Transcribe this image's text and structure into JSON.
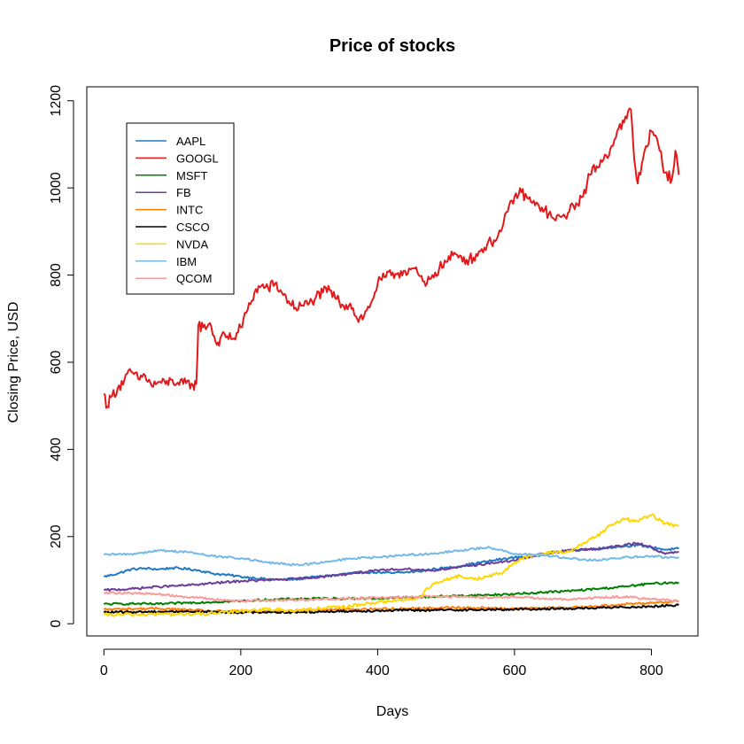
{
  "chart_data": {
    "type": "line",
    "title": "Price of stocks",
    "xlabel": "Days",
    "ylabel": "Closing Price, USD",
    "xlim": [
      -25,
      868
    ],
    "ylim": [
      -28,
      1232
    ],
    "xticks": [
      0,
      200,
      400,
      600,
      800
    ],
    "yticks": [
      0,
      200,
      400,
      600,
      800,
      1000,
      1200
    ],
    "grid": false,
    "legend_position": "top-left",
    "series": [
      {
        "name": "AAPL",
        "color": "#1f78c8",
        "points": [
          [
            0,
            108
          ],
          [
            20,
            115
          ],
          [
            40,
            125
          ],
          [
            60,
            127
          ],
          [
            80,
            125
          ],
          [
            100,
            128
          ],
          [
            120,
            126
          ],
          [
            140,
            122
          ],
          [
            160,
            115
          ],
          [
            180,
            112
          ],
          [
            200,
            108
          ],
          [
            220,
            105
          ],
          [
            240,
            102
          ],
          [
            260,
            101
          ],
          [
            280,
            102
          ],
          [
            300,
            106
          ],
          [
            320,
            109
          ],
          [
            340,
            112
          ],
          [
            360,
            116
          ],
          [
            380,
            118
          ],
          [
            400,
            118
          ],
          [
            420,
            116
          ],
          [
            440,
            118
          ],
          [
            460,
            120
          ],
          [
            480,
            125
          ],
          [
            500,
            128
          ],
          [
            520,
            132
          ],
          [
            540,
            138
          ],
          [
            560,
            143
          ],
          [
            580,
            148
          ],
          [
            600,
            152
          ],
          [
            620,
            155
          ],
          [
            640,
            158
          ],
          [
            660,
            165
          ],
          [
            680,
            168
          ],
          [
            700,
            170
          ],
          [
            720,
            172
          ],
          [
            740,
            175
          ],
          [
            760,
            178
          ],
          [
            780,
            180
          ],
          [
            800,
            176
          ],
          [
            820,
            170
          ],
          [
            840,
            172
          ]
        ]
      },
      {
        "name": "GOOGL",
        "color": "#e31a1c",
        "points": [
          [
            0,
            528
          ],
          [
            5,
            498
          ],
          [
            10,
            520
          ],
          [
            20,
            540
          ],
          [
            30,
            560
          ],
          [
            40,
            578
          ],
          [
            50,
            562
          ],
          [
            60,
            570
          ],
          [
            70,
            545
          ],
          [
            80,
            555
          ],
          [
            90,
            550
          ],
          [
            100,
            560
          ],
          [
            110,
            548
          ],
          [
            120,
            552
          ],
          [
            130,
            548
          ],
          [
            135,
            550
          ],
          [
            138,
            685
          ],
          [
            145,
            680
          ],
          [
            155,
            690
          ],
          [
            165,
            640
          ],
          [
            170,
            655
          ],
          [
            180,
            660
          ],
          [
            190,
            655
          ],
          [
            200,
            680
          ],
          [
            210,
            720
          ],
          [
            220,
            760
          ],
          [
            230,
            775
          ],
          [
            240,
            770
          ],
          [
            250,
            780
          ],
          [
            260,
            760
          ],
          [
            270,
            740
          ],
          [
            280,
            725
          ],
          [
            290,
            730
          ],
          [
            300,
            735
          ],
          [
            310,
            750
          ],
          [
            320,
            760
          ],
          [
            330,
            765
          ],
          [
            340,
            745
          ],
          [
            350,
            730
          ],
          [
            360,
            735
          ],
          [
            370,
            700
          ],
          [
            380,
            705
          ],
          [
            390,
            735
          ],
          [
            400,
            780
          ],
          [
            410,
            795
          ],
          [
            420,
            800
          ],
          [
            430,
            805
          ],
          [
            440,
            810
          ],
          [
            450,
            815
          ],
          [
            460,
            800
          ],
          [
            470,
            775
          ],
          [
            480,
            800
          ],
          [
            490,
            815
          ],
          [
            500,
            830
          ],
          [
            510,
            845
          ],
          [
            520,
            845
          ],
          [
            530,
            835
          ],
          [
            540,
            840
          ],
          [
            550,
            855
          ],
          [
            560,
            870
          ],
          [
            570,
            880
          ],
          [
            580,
            900
          ],
          [
            590,
            945
          ],
          [
            600,
            980
          ],
          [
            610,
            990
          ],
          [
            620,
            975
          ],
          [
            630,
            960
          ],
          [
            640,
            955
          ],
          [
            650,
            940
          ],
          [
            660,
            925
          ],
          [
            670,
            935
          ],
          [
            680,
            945
          ],
          [
            690,
            965
          ],
          [
            700,
            980
          ],
          [
            710,
            1030
          ],
          [
            720,
            1050
          ],
          [
            730,
            1065
          ],
          [
            740,
            1090
          ],
          [
            750,
            1130
          ],
          [
            760,
            1150
          ],
          [
            770,
            1180
          ],
          [
            775,
            1065
          ],
          [
            780,
            1010
          ],
          [
            790,
            1085
          ],
          [
            800,
            1130
          ],
          [
            810,
            1100
          ],
          [
            820,
            1035
          ],
          [
            830,
            1020
          ],
          [
            835,
            1085
          ],
          [
            840,
            1030
          ]
        ]
      },
      {
        "name": "MSFT",
        "color": "#008000",
        "points": [
          [
            0,
            45
          ],
          [
            40,
            46
          ],
          [
            80,
            45
          ],
          [
            120,
            48
          ],
          [
            160,
            50
          ],
          [
            200,
            52
          ],
          [
            240,
            55
          ],
          [
            280,
            57
          ],
          [
            320,
            58
          ],
          [
            360,
            58
          ],
          [
            400,
            58
          ],
          [
            440,
            60
          ],
          [
            480,
            62
          ],
          [
            520,
            64
          ],
          [
            560,
            66
          ],
          [
            600,
            68
          ],
          [
            640,
            72
          ],
          [
            680,
            75
          ],
          [
            720,
            80
          ],
          [
            760,
            85
          ],
          [
            800,
            92
          ],
          [
            840,
            95
          ]
        ]
      },
      {
        "name": "FB",
        "color": "#6a3d9a",
        "points": [
          [
            0,
            77
          ],
          [
            40,
            80
          ],
          [
            80,
            85
          ],
          [
            120,
            88
          ],
          [
            160,
            93
          ],
          [
            200,
            98
          ],
          [
            240,
            100
          ],
          [
            280,
            103
          ],
          [
            320,
            108
          ],
          [
            360,
            115
          ],
          [
            400,
            122
          ],
          [
            440,
            126
          ],
          [
            480,
            122
          ],
          [
            520,
            130
          ],
          [
            560,
            138
          ],
          [
            600,
            145
          ],
          [
            640,
            160
          ],
          [
            680,
            168
          ],
          [
            720,
            172
          ],
          [
            760,
            180
          ],
          [
            780,
            185
          ],
          [
            800,
            175
          ],
          [
            820,
            160
          ],
          [
            840,
            165
          ]
        ]
      },
      {
        "name": "INTC",
        "color": "#ff7f00",
        "points": [
          [
            0,
            33
          ],
          [
            40,
            34
          ],
          [
            80,
            35
          ],
          [
            120,
            32
          ],
          [
            160,
            29
          ],
          [
            200,
            28
          ],
          [
            240,
            29
          ],
          [
            280,
            30
          ],
          [
            320,
            32
          ],
          [
            360,
            33
          ],
          [
            400,
            34
          ],
          [
            440,
            35
          ],
          [
            480,
            36
          ],
          [
            520,
            37
          ],
          [
            560,
            36
          ],
          [
            600,
            35
          ],
          [
            640,
            36
          ],
          [
            680,
            37
          ],
          [
            720,
            40
          ],
          [
            760,
            45
          ],
          [
            800,
            48
          ],
          [
            840,
            52
          ]
        ]
      },
      {
        "name": "CSCO",
        "color": "#000000",
        "points": [
          [
            0,
            26
          ],
          [
            40,
            27
          ],
          [
            80,
            28
          ],
          [
            120,
            28
          ],
          [
            160,
            27
          ],
          [
            200,
            26
          ],
          [
            240,
            27
          ],
          [
            280,
            26
          ],
          [
            320,
            28
          ],
          [
            360,
            29
          ],
          [
            400,
            30
          ],
          [
            440,
            31
          ],
          [
            480,
            31
          ],
          [
            520,
            32
          ],
          [
            560,
            32
          ],
          [
            600,
            33
          ],
          [
            640,
            34
          ],
          [
            680,
            35
          ],
          [
            720,
            36
          ],
          [
            760,
            38
          ],
          [
            800,
            40
          ],
          [
            840,
            43
          ]
        ]
      },
      {
        "name": "NVDA",
        "color": "#ffd700",
        "points": [
          [
            0,
            20
          ],
          [
            40,
            21
          ],
          [
            80,
            22
          ],
          [
            120,
            22
          ],
          [
            160,
            23
          ],
          [
            200,
            30
          ],
          [
            240,
            33
          ],
          [
            280,
            30
          ],
          [
            320,
            35
          ],
          [
            360,
            40
          ],
          [
            400,
            50
          ],
          [
            440,
            55
          ],
          [
            460,
            60
          ],
          [
            480,
            90
          ],
          [
            500,
            100
          ],
          [
            520,
            110
          ],
          [
            540,
            102
          ],
          [
            560,
            108
          ],
          [
            580,
            115
          ],
          [
            600,
            140
          ],
          [
            620,
            155
          ],
          [
            640,
            160
          ],
          [
            660,
            165
          ],
          [
            680,
            165
          ],
          [
            700,
            185
          ],
          [
            720,
            200
          ],
          [
            740,
            225
          ],
          [
            760,
            240
          ],
          [
            780,
            235
          ],
          [
            800,
            250
          ],
          [
            820,
            230
          ],
          [
            840,
            225
          ]
        ]
      },
      {
        "name": "IBM",
        "color": "#74b9e8",
        "points": [
          [
            0,
            158
          ],
          [
            40,
            160
          ],
          [
            80,
            168
          ],
          [
            120,
            165
          ],
          [
            160,
            155
          ],
          [
            200,
            150
          ],
          [
            240,
            140
          ],
          [
            280,
            135
          ],
          [
            320,
            140
          ],
          [
            360,
            150
          ],
          [
            400,
            152
          ],
          [
            440,
            158
          ],
          [
            480,
            160
          ],
          [
            520,
            168
          ],
          [
            560,
            175
          ],
          [
            580,
            170
          ],
          [
            600,
            160
          ],
          [
            640,
            158
          ],
          [
            680,
            150
          ],
          [
            720,
            145
          ],
          [
            760,
            152
          ],
          [
            800,
            155
          ],
          [
            840,
            150
          ]
        ]
      },
      {
        "name": "QCOM",
        "color": "#fb9a99",
        "points": [
          [
            0,
            72
          ],
          [
            40,
            70
          ],
          [
            80,
            68
          ],
          [
            120,
            62
          ],
          [
            160,
            56
          ],
          [
            200,
            52
          ],
          [
            240,
            54
          ],
          [
            280,
            55
          ],
          [
            320,
            56
          ],
          [
            360,
            58
          ],
          [
            400,
            60
          ],
          [
            440,
            62
          ],
          [
            480,
            63
          ],
          [
            520,
            62
          ],
          [
            560,
            60
          ],
          [
            600,
            62
          ],
          [
            640,
            58
          ],
          [
            680,
            55
          ],
          [
            720,
            60
          ],
          [
            760,
            62
          ],
          [
            800,
            57
          ],
          [
            840,
            52
          ]
        ]
      }
    ]
  }
}
